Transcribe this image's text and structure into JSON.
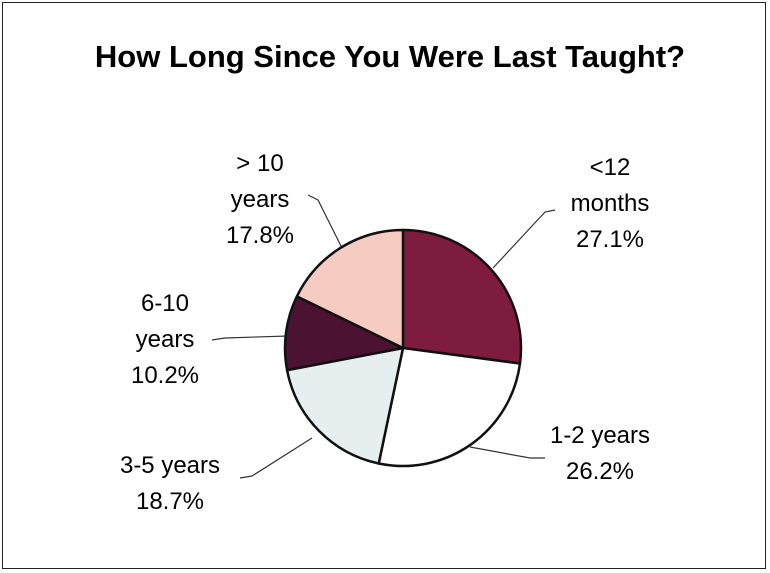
{
  "chart_data": {
    "type": "pie",
    "title": "How Long Since You Were Last Taught?",
    "categories": [
      "<12 months",
      "1-2 years",
      "3-5 years",
      "6-10 years",
      "> 10 years"
    ],
    "values": [
      27.1,
      26.2,
      18.7,
      10.2,
      17.8
    ],
    "value_labels": [
      "27.1%",
      "26.2%",
      "18.7%",
      "10.2%",
      "17.8%"
    ],
    "colors": [
      "#7d1c3e",
      "#ffffff",
      "#e6eef0",
      "#4c1232",
      "#f6cbc2"
    ]
  }
}
